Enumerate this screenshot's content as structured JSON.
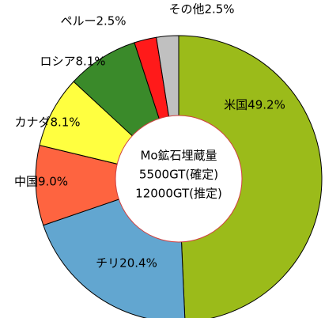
{
  "chart_data": {
    "type": "pie",
    "value_labels": [
      "米国49.2%",
      "チリ20.4%",
      "中国9.0%",
      "カナダ8.1%",
      "ロシア8.1%",
      "ペルー2.5%",
      "その他2.5%"
    ],
    "values": [
      49.2,
      20.4,
      9.0,
      8.1,
      8.1,
      2.5,
      2.5
    ],
    "colors": [
      "#9bbb1a",
      "#62a6d0",
      "#fe6440",
      "#ffff40",
      "#3a8a2a",
      "#ff1a1a",
      "#c0c0c0"
    ],
    "center_text": [
      "Mo鉱石埋蔵量",
      "5500GT(確定)",
      "12000GT(推定)"
    ]
  }
}
